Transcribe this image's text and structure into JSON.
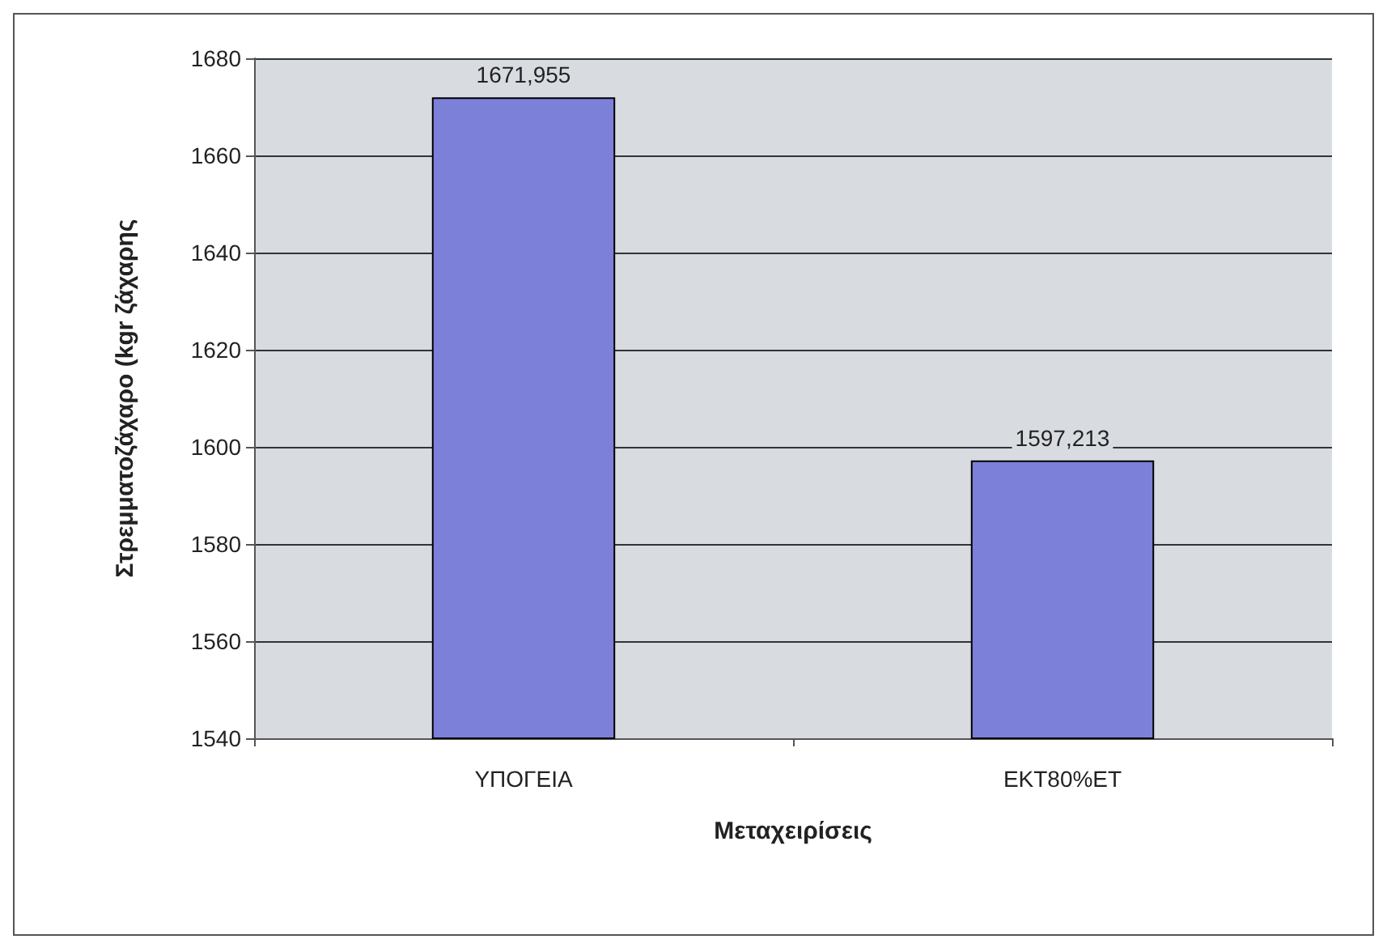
{
  "chart_data": {
    "type": "bar",
    "xlabel": "Μεταχειρίσεις",
    "ylabel": "Στρεμματοζάχαρο (kgr ζάχαρης",
    "categories": [
      "ΥΠΟΓΕΙΑ",
      "ΕΚΤ80%ΕΤ"
    ],
    "values": [
      1671.955,
      1597.213
    ],
    "value_labels": [
      "1671,955",
      "1597,213"
    ],
    "color": "#7c80d8",
    "ylim": [
      1540,
      1680
    ],
    "yticks": [
      1540,
      1560,
      1580,
      1600,
      1620,
      1640,
      1660,
      1680
    ],
    "grid": "y"
  }
}
